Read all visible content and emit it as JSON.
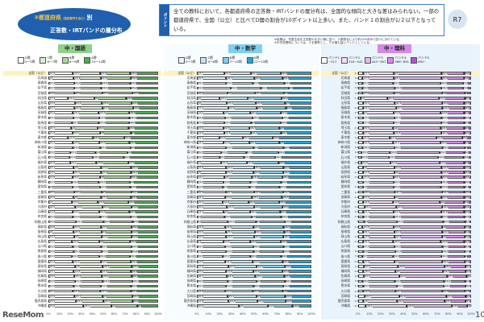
{
  "header": {
    "title_num": "③",
    "title_pref": "都道府県",
    "title_small": "（指定都市を含む）",
    "title_betsu": "別",
    "title_line2": "正答数・IRTバンドの層分布",
    "point_tag": "ポイント",
    "point_text": "全ての教科において、各都道府県の正答数・IRTバンドの層分布は、全国的な傾向と大きな差はみられない。一部の都道府県で、全国（公立）と比べてD層の割合が10ポイント以上多い。また、バンド１の割合が1/２以下となっている。",
    "badge": "R7",
    "note1": "※各層は、児童生徒を正答数の大きい順に並べ、人数割合により約25%刻みで四つに分けている。",
    "note2": "※中学校理科については、３を基準とし、５を最も高いバンドとしている。"
  },
  "prefectures": [
    "全国（公立）",
    "北海道",
    "青森県",
    "岩手県",
    "宮城県",
    "秋田県",
    "山形県",
    "福島県",
    "茨城県",
    "栃木県",
    "群馬県",
    "埼玉県",
    "千葉県",
    "東京都",
    "神奈川県",
    "新潟県",
    "富山県",
    "石川県",
    "福井県",
    "山梨県",
    "長野県",
    "岐阜県",
    "静岡県",
    "愛知県",
    "三重県",
    "滋賀県",
    "京都府",
    "大阪府",
    "兵庫県",
    "奈良県",
    "和歌山県",
    "鳥取県",
    "島根県",
    "岡山県",
    "広島県",
    "山口県",
    "徳島県",
    "香川県",
    "愛媛県",
    "高知県",
    "福岡県",
    "佐賀県",
    "長崎県",
    "熊本県",
    "大分県",
    "宮崎県",
    "鹿児島県",
    "沖縄県"
  ],
  "axis_ticks": [
    "0%",
    "10%",
    "20%",
    "30%",
    "40%",
    "50%",
    "60%",
    "70%",
    "80%",
    "90%",
    "100%"
  ],
  "chart_data": [
    {
      "type": "bar",
      "title": "中・国語",
      "legend": [
        {
          "label": "D層",
          "sub": "0～5問"
        },
        {
          "label": "C層",
          "sub": "6～7問"
        },
        {
          "label": "B層",
          "sub": "8～9問"
        },
        {
          "label": "A層",
          "sub": "10～14問"
        }
      ],
      "colors": [
        "#ffffff",
        "#d9eed2",
        "#a9d89c",
        "#4cae55"
      ],
      "title_bg": "#8fd18a",
      "rows": [
        [
          22.4,
          24.7,
          27.5,
          25.4
        ],
        [
          23.0,
          24.4,
          27.3,
          25.2
        ],
        [
          23.2,
          24.9,
          26.4,
          25.5
        ],
        [
          23.3,
          24.8,
          26.7,
          25.2
        ],
        [
          23.6,
          25.6,
          27.2,
          23.7
        ],
        [
          17.4,
          24.4,
          29.0,
          29.2
        ],
        [
          23.9,
          24.9,
          26.8,
          24.4
        ],
        [
          23.7,
          25.8,
          27.7,
          22.8
        ],
        [
          22.2,
          23.7,
          27.5,
          26.6
        ],
        [
          22.5,
          23.8,
          27.6,
          26.1
        ],
        [
          21.4,
          24.5,
          27.6,
          26.5
        ],
        [
          20.7,
          24.0,
          28.2,
          27.1
        ],
        [
          21.9,
          25.2,
          28.0,
          25.0
        ],
        [
          18.0,
          22.5,
          28.4,
          31.1
        ],
        [
          22.2,
          23.9,
          27.5,
          26.4
        ],
        [
          22.2,
          24.9,
          27.9,
          25.0
        ],
        [
          19.5,
          23.5,
          29.0,
          28.0
        ],
        [
          18.8,
          21.6,
          28.1,
          31.5
        ],
        [
          19.6,
          24.1,
          28.8,
          27.5
        ],
        [
          23.1,
          25.0,
          27.2,
          24.7
        ],
        [
          22.6,
          25.3,
          27.4,
          24.7
        ],
        [
          21.8,
          25.1,
          28.0,
          25.1
        ],
        [
          21.3,
          24.6,
          28.1,
          26.0
        ],
        [
          22.0,
          24.8,
          27.6,
          25.6
        ],
        [
          23.4,
          25.2,
          27.0,
          24.4
        ],
        [
          22.9,
          25.0,
          27.3,
          24.8
        ],
        [
          21.0,
          23.9,
          27.9,
          27.2
        ],
        [
          24.5,
          24.6,
          26.4,
          24.5
        ],
        [
          21.8,
          24.3,
          27.6,
          26.3
        ],
        [
          22.4,
          24.9,
          27.5,
          25.2
        ],
        [
          24.8,
          25.3,
          26.5,
          23.4
        ],
        [
          22.6,
          25.4,
          27.6,
          24.4
        ],
        [
          23.0,
          25.5,
          27.0,
          24.5
        ],
        [
          23.3,
          25.0,
          27.1,
          24.6
        ],
        [
          21.5,
          24.6,
          28.0,
          25.9
        ],
        [
          22.2,
          25.8,
          27.6,
          24.4
        ],
        [
          22.8,
          25.4,
          27.2,
          24.6
        ],
        [
          21.2,
          24.8,
          28.1,
          25.9
        ],
        [
          22.4,
          25.2,
          27.3,
          25.1
        ],
        [
          24.6,
          25.0,
          26.5,
          23.9
        ],
        [
          23.1,
          24.8,
          27.2,
          24.9
        ],
        [
          23.5,
          25.4,
          26.9,
          24.2
        ],
        [
          23.9,
          25.6,
          26.8,
          23.7
        ],
        [
          22.8,
          24.9,
          27.4,
          24.9
        ],
        [
          22.1,
          25.3,
          27.7,
          24.9
        ],
        [
          23.6,
          25.7,
          27.0,
          23.7
        ],
        [
          24.9,
          25.4,
          26.3,
          23.4
        ],
        [
          31.9,
          25.1,
          24.0,
          19.0
        ]
      ]
    },
    {
      "type": "bar",
      "title": "中・数学",
      "legend": [
        {
          "label": "D層",
          "sub": "0～3問"
        },
        {
          "label": "C層",
          "sub": "4～6問"
        },
        {
          "label": "B層",
          "sub": "7～10問"
        },
        {
          "label": "A層",
          "sub": "11～15問"
        }
      ],
      "colors": [
        "#e8f6fc",
        "#bfe6f5",
        "#7fcfea",
        "#1fa8dd"
      ],
      "title_bg": "#7fd0ef",
      "rows": [
        [
          23.7,
          23.3,
          26.1,
          26.9
        ],
        [
          25.5,
          24.7,
          24.6,
          25.2
        ],
        [
          25.1,
          23.7,
          27.4,
          23.8
        ],
        [
          29.6,
          26.5,
          24.7,
          20.0
        ],
        [
          26.6,
          24.0,
          25.4,
          24.0
        ],
        [
          20.0,
          24.3,
          29.5,
          26.2
        ],
        [
          26.0,
          25.2,
          25.8,
          23.0
        ],
        [
          27.3,
          24.9,
          25.3,
          22.5
        ],
        [
          23.5,
          23.0,
          26.4,
          27.1
        ],
        [
          24.6,
          23.8,
          26.2,
          25.4
        ],
        [
          23.8,
          23.4,
          26.0,
          26.8
        ],
        [
          22.9,
          22.8,
          26.3,
          28.0
        ],
        [
          23.6,
          23.5,
          26.2,
          26.7
        ],
        [
          19.4,
          20.6,
          26.1,
          33.9
        ],
        [
          23.1,
          22.8,
          26.1,
          28.0
        ],
        [
          25.2,
          24.3,
          26.0,
          24.5
        ],
        [
          20.8,
          22.2,
          27.8,
          29.2
        ],
        [
          19.9,
          21.0,
          27.4,
          31.7
        ],
        [
          21.0,
          22.4,
          27.8,
          28.8
        ],
        [
          25.6,
          24.4,
          25.4,
          24.6
        ],
        [
          25.0,
          24.4,
          25.9,
          24.7
        ],
        [
          24.1,
          24.0,
          26.5,
          25.4
        ],
        [
          23.2,
          23.6,
          26.6,
          26.6
        ],
        [
          22.8,
          23.0,
          26.3,
          27.9
        ],
        [
          25.4,
          24.3,
          25.6,
          24.7
        ],
        [
          24.3,
          23.9,
          26.1,
          25.7
        ],
        [
          22.5,
          22.6,
          26.4,
          28.5
        ],
        [
          26.4,
          23.5,
          24.6,
          25.5
        ],
        [
          23.3,
          23.0,
          26.3,
          27.4
        ],
        [
          24.0,
          23.6,
          26.0,
          26.4
        ],
        [
          27.0,
          24.5,
          25.0,
          23.5
        ],
        [
          24.8,
          24.6,
          26.2,
          24.4
        ],
        [
          25.5,
          25.1,
          25.6,
          23.8
        ],
        [
          25.6,
          24.2,
          25.5,
          24.7
        ],
        [
          23.0,
          23.6,
          26.6,
          26.8
        ],
        [
          24.3,
          24.8,
          26.4,
          24.5
        ],
        [
          25.0,
          24.5,
          25.6,
          24.9
        ],
        [
          22.8,
          23.7,
          26.9,
          26.6
        ],
        [
          24.6,
          24.3,
          25.9,
          25.2
        ],
        [
          27.6,
          24.5,
          24.5,
          23.4
        ],
        [
          25.2,
          23.8,
          25.6,
          25.4
        ],
        [
          26.1,
          24.9,
          25.1,
          23.9
        ],
        [
          26.9,
          25.0,
          25.0,
          23.1
        ],
        [
          25.1,
          24.2,
          25.9,
          24.8
        ],
        [
          24.3,
          24.4,
          26.3,
          25.0
        ],
        [
          26.8,
          25.3,
          25.0,
          22.9
        ],
        [
          27.8,
          24.8,
          24.6,
          22.8
        ],
        [
          36.8,
          25.0,
          21.6,
          16.6
        ]
      ]
    },
    {
      "type": "bar",
      "title": "中・理科",
      "legend": [
        {
          "label": "バンド1",
          "sub": "~317"
        },
        {
          "label": "バンド2",
          "sub": "318~442"
        },
        {
          "label": "バンド3",
          "sub": "443~567"
        },
        {
          "label": "バンド4",
          "sub": "568~691"
        },
        {
          "label": "バンド5",
          "sub": "692~"
        }
      ],
      "colors": [
        "#ffffff",
        "#f3def8",
        "#e4b8ef",
        "#d58ae7",
        "#b24fd0"
      ],
      "title_bg": "#d38ae6",
      "rows": [
        [
          4.3,
          27.3,
          42.0,
          20.3,
          6.1
        ],
        [
          3.9,
          27.6,
          42.1,
          19.9,
          6.5
        ],
        [
          3.6,
          27.3,
          41.7,
          20.2,
          7.2
        ],
        [
          3.6,
          28.9,
          40.8,
          19.3,
          7.4
        ],
        [
          3.9,
          27.6,
          42.5,
          20.0,
          6.0
        ],
        [
          1.8,
          24.0,
          45.3,
          23.3,
          5.6
        ],
        [
          4.0,
          28.4,
          41.6,
          19.8,
          6.2
        ],
        [
          4.2,
          29.1,
          41.3,
          19.3,
          6.1
        ],
        [
          4.3,
          27.0,
          41.8,
          20.6,
          6.3
        ],
        [
          4.2,
          27.6,
          41.9,
          20.2,
          6.1
        ],
        [
          4.0,
          27.2,
          42.1,
          20.4,
          6.3
        ],
        [
          4.1,
          26.9,
          42.0,
          20.7,
          6.3
        ],
        [
          4.3,
          27.4,
          41.8,
          20.3,
          6.2
        ],
        [
          3.6,
          24.3,
          41.2,
          22.8,
          8.1
        ],
        [
          4.2,
          26.8,
          41.7,
          20.9,
          6.4
        ],
        [
          3.8,
          28.2,
          42.4,
          19.6,
          6.0
        ],
        [
          2.8,
          25.4,
          43.8,
          21.7,
          6.3
        ],
        [
          2.5,
          24.6,
          43.4,
          22.6,
          6.9
        ],
        [
          2.6,
          25.8,
          43.6,
          21.6,
          6.4
        ],
        [
          4.0,
          28.0,
          41.9,
          19.9,
          6.2
        ],
        [
          4.1,
          27.8,
          42.0,
          19.9,
          6.2
        ],
        [
          3.9,
          27.4,
          42.4,
          20.2,
          6.1
        ],
        [
          4.0,
          27.1,
          42.3,
          20.4,
          6.2
        ],
        [
          4.2,
          27.0,
          41.9,
          20.6,
          6.3
        ],
        [
          4.4,
          28.1,
          41.7,
          19.7,
          6.1
        ],
        [
          4.2,
          27.6,
          42.0,
          20.1,
          6.1
        ],
        [
          4.0,
          26.6,
          41.8,
          21.0,
          6.6
        ],
        [
          5.4,
          28.4,
          40.5,
          19.5,
          6.2
        ],
        [
          4.3,
          27.1,
          41.9,
          20.5,
          6.2
        ],
        [
          4.3,
          27.4,
          41.9,
          20.2,
          6.2
        ],
        [
          5.0,
          29.0,
          41.2,
          19.1,
          5.7
        ],
        [
          3.9,
          27.5,
          42.8,
          20.0,
          5.8
        ],
        [
          4.0,
          28.1,
          42.4,
          19.7,
          5.8
        ],
        [
          4.5,
          27.8,
          41.8,
          20.0,
          5.9
        ],
        [
          4.1,
          26.9,
          42.2,
          20.6,
          6.2
        ],
        [
          4.0,
          27.9,
          42.4,
          19.9,
          5.8
        ],
        [
          4.6,
          28.0,
          41.6,
          19.9,
          5.9
        ],
        [
          3.9,
          27.0,
          42.6,
          20.5,
          6.0
        ],
        [
          4.4,
          27.6,
          42.0,
          20.1,
          5.9
        ],
        [
          4.7,
          30.6,
          40.8,
          18.6,
          5.3
        ],
        [
          4.6,
          28.4,
          42.0,
          19.7,
          5.3
        ],
        [
          4.8,
          31.4,
          42.5,
          17.2,
          4.1
        ],
        [
          3.6,
          28.6,
          43.8,
          18.4,
          5.6
        ],
        [
          4.4,
          29.7,
          41.5,
          19.2,
          5.2
        ],
        [
          4.5,
          28.5,
          41.4,
          19.8,
          5.8
        ],
        [
          5.4,
          30.7,
          41.8,
          17.2,
          4.9
        ],
        [
          4.5,
          30.0,
          42.1,
          18.3,
          5.1
        ],
        [
          6.7,
          36.5,
          39.6,
          13.6,
          3.6
        ]
      ]
    }
  ],
  "watermark": "ReseMom",
  "page_number": "10"
}
